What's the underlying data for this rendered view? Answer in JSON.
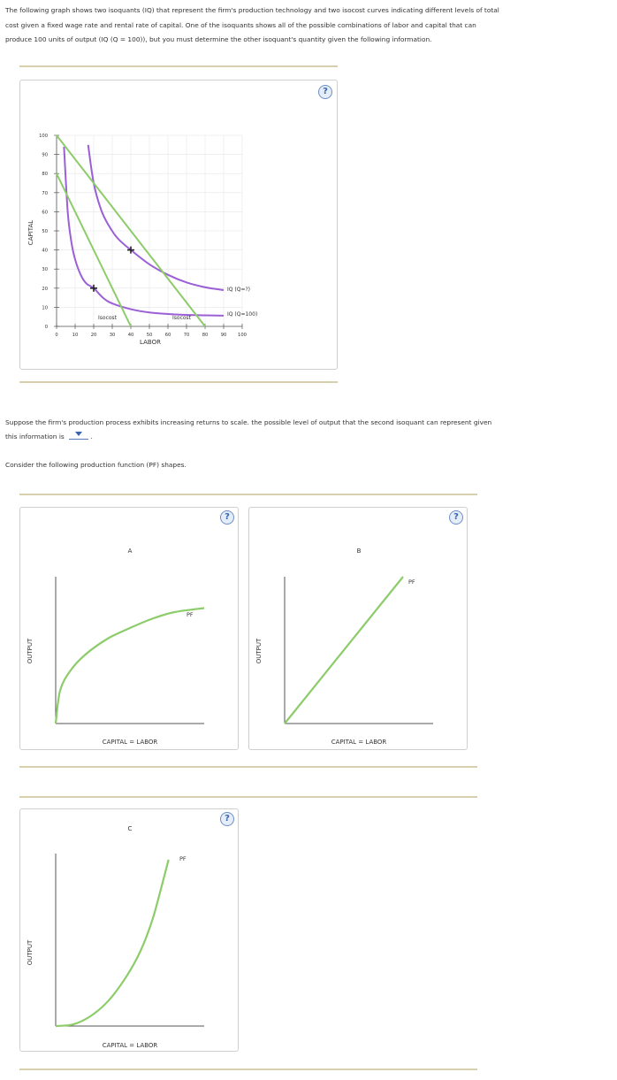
{
  "intro": {
    "line1": "The following graph shows two isoquants (IQ) that represent the firm's production technology and two isocost curves indicating different levels of total",
    "line2": "cost given a fixed wage rate and rental rate of capital. One of the isoquants shows all of the possible combinations of labor and capital that can",
    "line3": "produce 100 units of output (IQ (Q = 100)), but you must determine the other isoquant's quantity given the following information."
  },
  "help_label": "?",
  "question": {
    "line1": "Suppose the firm's production process exhibits increasing returns to scale. the possible level of output that the second isoquant can represent given",
    "line2_prefix": "this information is",
    "line2_suffix": ".",
    "dropdown_value": ""
  },
  "consider_text": "Consider the following production function (PF) shapes.",
  "colors": {
    "isoquant": "#9b5fd6",
    "isocost": "#8dcc6a",
    "pf": "#8dcc6a",
    "axis": "#555555",
    "grid": "#e6e6e6",
    "rule": "#d8cfae"
  },
  "chart_data": [
    {
      "type": "line",
      "xlabel": "LABOR",
      "ylabel": "CAPITAL",
      "xlim": [
        0,
        100
      ],
      "ylim": [
        0,
        100
      ],
      "xticks": [
        0,
        10,
        20,
        30,
        40,
        50,
        60,
        70,
        80,
        90,
        100
      ],
      "yticks": [
        0,
        10,
        20,
        30,
        40,
        50,
        60,
        70,
        80,
        90,
        100
      ],
      "grid": true,
      "series": [
        {
          "name": "IQ (Q=100)",
          "kind": "isoquant",
          "x": [
            4,
            6,
            8,
            10,
            13,
            16,
            20,
            25,
            30,
            40,
            50,
            60,
            70,
            80,
            90
          ],
          "y": [
            94,
            60,
            44,
            35,
            27,
            22.5,
            20,
            15,
            12,
            9,
            7.3,
            6.5,
            6,
            5.8,
            5.6
          ]
        },
        {
          "name": "IQ (Q=?)",
          "kind": "isoquant",
          "x": [
            17,
            20,
            24,
            28,
            33,
            40,
            50,
            60,
            70,
            80,
            90
          ],
          "y": [
            95,
            75,
            61,
            53,
            46,
            40,
            32.5,
            27,
            23,
            20.5,
            19
          ]
        },
        {
          "name": "Isocost",
          "kind": "isocost",
          "x": [
            0,
            40
          ],
          "y": [
            80,
            0
          ]
        },
        {
          "name": "Isocost",
          "kind": "isocost",
          "x": [
            0,
            80
          ],
          "y": [
            100,
            0
          ]
        }
      ],
      "points": [
        {
          "x": 20,
          "y": 20
        },
        {
          "x": 40,
          "y": 40
        }
      ],
      "labels": {
        "iq_unknown": "IQ (Q=?)",
        "iq_known": "IQ (Q=100)",
        "isocost_1": "Isocost",
        "isocost_2": "Isocost"
      }
    },
    {
      "type": "line",
      "title": "A",
      "xlabel": "CAPITAL = LABOR",
      "ylabel": "OUTPUT",
      "series": [
        {
          "name": "PF",
          "x": [
            0,
            0.03,
            0.1,
            0.2,
            0.35,
            0.5,
            0.65,
            0.8,
            1.0
          ],
          "y": [
            0,
            0.25,
            0.4,
            0.52,
            0.64,
            0.72,
            0.79,
            0.84,
            0.87
          ]
        }
      ]
    },
    {
      "type": "line",
      "title": "B",
      "xlabel": "CAPITAL = LABOR",
      "ylabel": "OUTPUT",
      "series": [
        {
          "name": "PF",
          "x": [
            0,
            1
          ],
          "y": [
            0,
            1
          ]
        }
      ]
    },
    {
      "type": "line",
      "title": "C",
      "xlabel": "CAPITAL = LABOR",
      "ylabel": "OUTPUT",
      "series": [
        {
          "name": "PF",
          "x": [
            0,
            0.15,
            0.3,
            0.45,
            0.6,
            0.72,
            0.82,
            0.9,
            0.96
          ],
          "y": [
            0,
            0.01,
            0.06,
            0.15,
            0.29,
            0.44,
            0.62,
            0.82,
            0.98
          ]
        }
      ]
    }
  ]
}
